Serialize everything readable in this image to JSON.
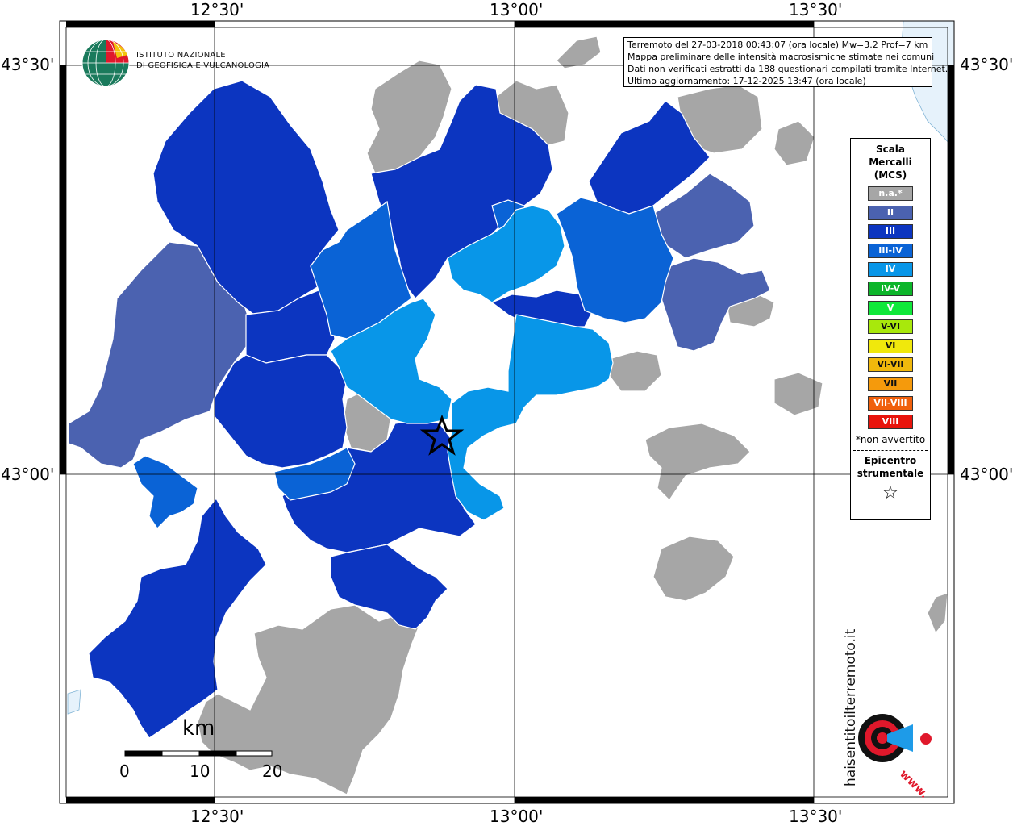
{
  "map": {
    "longitude_labels": [
      "12°30'",
      "13°00'",
      "13°30'"
    ],
    "latitude_labels": [
      "43°30'",
      "43°00'"
    ]
  },
  "institute": {
    "name_line1": "ISTITUTO NAZIONALE",
    "name_line2": "DI GEOFISICA E VULCANOLOGIA"
  },
  "info": {
    "line1": "Terremoto del 27-03-2018 00:43:07 (ora locale) Mw=3.2 Prof=7 km",
    "line2": "Mappa preliminare delle intensità macrosismiche stimate nei comuni",
    "line3": "Dati non verificati estratti da 188 questionari compilati tramite Internet.",
    "line4": "Ultimo aggiornamento: 17-12-2025 13:47 (ora locale)"
  },
  "legend": {
    "title_line1": "Scala",
    "title_line2": "Mercalli",
    "title_line3": "(MCS)",
    "items": [
      {
        "label": "n.a.*",
        "color": "#a6a6a6"
      },
      {
        "label": "II",
        "color": "#4b62b0"
      },
      {
        "label": "III",
        "color": "#0c35c0"
      },
      {
        "label": "III-IV",
        "color": "#0a63d6"
      },
      {
        "label": "IV",
        "color": "#0896e8"
      },
      {
        "label": "IV-V",
        "color": "#0cb52a"
      },
      {
        "label": "V",
        "color": "#10e83a"
      },
      {
        "label": "V-VI",
        "color": "#a8e80c"
      },
      {
        "label": "VI",
        "color": "#f0e80c"
      },
      {
        "label": "VI-VII",
        "color": "#f0b80c"
      },
      {
        "label": "VII",
        "color": "#f59a0c"
      },
      {
        "label": "VII-VIII",
        "color": "#f0600c"
      },
      {
        "label": "VIII",
        "color": "#e8140c"
      }
    ],
    "note": "*non avvertito",
    "epicenter_line1": "Epicentro",
    "epicenter_line2": "strumentale",
    "star": "☆"
  },
  "scale_bar": {
    "unit": "km",
    "labels": [
      "0",
      "10",
      "20"
    ]
  },
  "watermark": {
    "text": "haisentitoilterremoto.it",
    "url": "www."
  }
}
